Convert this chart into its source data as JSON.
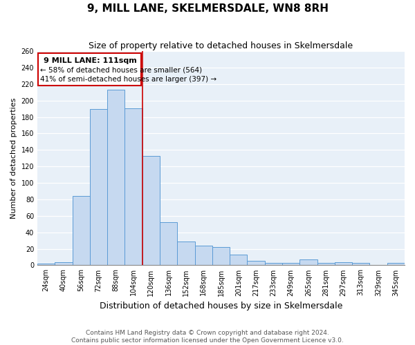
{
  "title": "9, MILL LANE, SKELMERSDALE, WN8 8RH",
  "subtitle": "Size of property relative to detached houses in Skelmersdale",
  "xlabel": "Distribution of detached houses by size in Skelmersdale",
  "ylabel": "Number of detached properties",
  "bin_labels": [
    "24sqm",
    "40sqm",
    "56sqm",
    "72sqm",
    "88sqm",
    "104sqm",
    "120sqm",
    "136sqm",
    "152sqm",
    "168sqm",
    "185sqm",
    "201sqm",
    "217sqm",
    "233sqm",
    "249sqm",
    "265sqm",
    "281sqm",
    "297sqm",
    "313sqm",
    "329sqm",
    "345sqm"
  ],
  "bar_values": [
    2,
    4,
    84,
    190,
    213,
    191,
    133,
    52,
    29,
    24,
    22,
    13,
    5,
    3,
    3,
    7,
    3,
    4,
    3,
    0,
    3
  ],
  "bar_color": "#c6d9f0",
  "bar_edge_color": "#5b9bd5",
  "bg_color": "#e8f0f8",
  "grid_color": "#ffffff",
  "marker_label": "9 MILL LANE: 111sqm",
  "annotation_line1": "← 58% of detached houses are smaller (564)",
  "annotation_line2": "41% of semi-detached houses are larger (397) →",
  "annotation_box_edge": "#cc0000",
  "ylim": [
    0,
    260
  ],
  "yticks": [
    0,
    20,
    40,
    60,
    80,
    100,
    120,
    140,
    160,
    180,
    200,
    220,
    240,
    260
  ],
  "footnote1": "Contains HM Land Registry data © Crown copyright and database right 2024.",
  "footnote2": "Contains public sector information licensed under the Open Government Licence v3.0.",
  "title_fontsize": 11,
  "subtitle_fontsize": 9,
  "xlabel_fontsize": 9,
  "ylabel_fontsize": 8,
  "tick_fontsize": 7,
  "annot_fontsize_title": 8,
  "annot_fontsize_body": 7.5,
  "footnote_fontsize": 6.5
}
